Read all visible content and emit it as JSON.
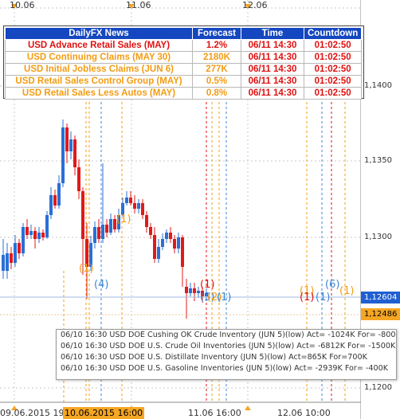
{
  "top_axis": {
    "labels": [
      "10.06",
      "11.06",
      "12.06"
    ]
  },
  "bottom_axis": {
    "labels": [
      "09.06.2015 19",
      "11.06 16:00",
      "12.06 10:00"
    ],
    "highlight_label": "10.06.2015 16:00"
  },
  "price_axis": {
    "labels": [
      "1,1400",
      "1,1350",
      "1,1300",
      "1,1200"
    ]
  },
  "price_tags": {
    "bid": "1,12604",
    "ask": "1,12486"
  },
  "news_table": {
    "headers": [
      "DailyFX News",
      "Forecast",
      "Time",
      "Countdown"
    ],
    "rows": [
      {
        "name": "USD Advance Retail Sales (MAY)",
        "forecast": "1.2%",
        "time": "06/11 14:30",
        "countdown": "01:02:50",
        "color": "#e01010"
      },
      {
        "name": "USD Continuing Claims (MAY 30)",
        "forecast": "2180K",
        "time": "06/11 14:30",
        "countdown": "01:02:50",
        "color": "#f39c12"
      },
      {
        "name": "USD Initial Jobless Claims (JUN 6)",
        "forecast": "277K",
        "time": "06/11 14:30",
        "countdown": "01:02:50",
        "color": "#f39c12"
      },
      {
        "name": "USD Retail Sales Control Group (MAY)",
        "forecast": "0.5%",
        "time": "06/11 14:30",
        "countdown": "01:02:50",
        "color": "#f39c12"
      },
      {
        "name": "USD Retail Sales Less Autos (MAY)",
        "forecast": "0.8%",
        "time": "06/11 14:30",
        "countdown": "01:02:50",
        "color": "#f39c12"
      }
    ]
  },
  "popup": {
    "lines": [
      "06/10 16:30 USD DOE Cushing OK Crude Inventory (JUN 5)(low) Act= -1024K For= -800",
      "06/10 16:30 USD DOE U.S. Crude Oil Inventories (JUN 5)(low) Act= -6812K For= -1500K",
      "06/10 16:30 USD DOE U.S. Distillate Inventory (JUN 5)(low) Act=865K For=700K",
      "06/10 16:30 USD DOE U.S. Gasoline Inventories (JUN 5)(low) Act= -2939K For= -400K"
    ]
  },
  "event_markers": [
    {
      "label": "(1)",
      "color": "#f39c12"
    },
    {
      "label": "(4)",
      "color": "#3a86d8"
    },
    {
      "label": "(1)",
      "color": "#f39c12"
    },
    {
      "label": "(1)",
      "color": "#e01010"
    },
    {
      "label": "(3)",
      "color": "#3a86d8"
    },
    {
      "label": "(2)",
      "color": "#f39c12"
    },
    {
      "label": "(1)",
      "color": "#3a86d8"
    },
    {
      "label": "(1)",
      "color": "#f39c12"
    },
    {
      "label": "(1)",
      "color": "#e01010"
    },
    {
      "label": "(1)",
      "color": "#3a86d8"
    },
    {
      "label": "(6)",
      "color": "#3a86d8"
    },
    {
      "label": "(1)",
      "color": "#f39c12"
    }
  ],
  "colors": {
    "bull": "#2a6fd6",
    "bear": "#e01a1a",
    "tag_bid": "#1f5fd1",
    "tag_ask": "#f5a623",
    "header_bg": "#1447c0"
  }
}
